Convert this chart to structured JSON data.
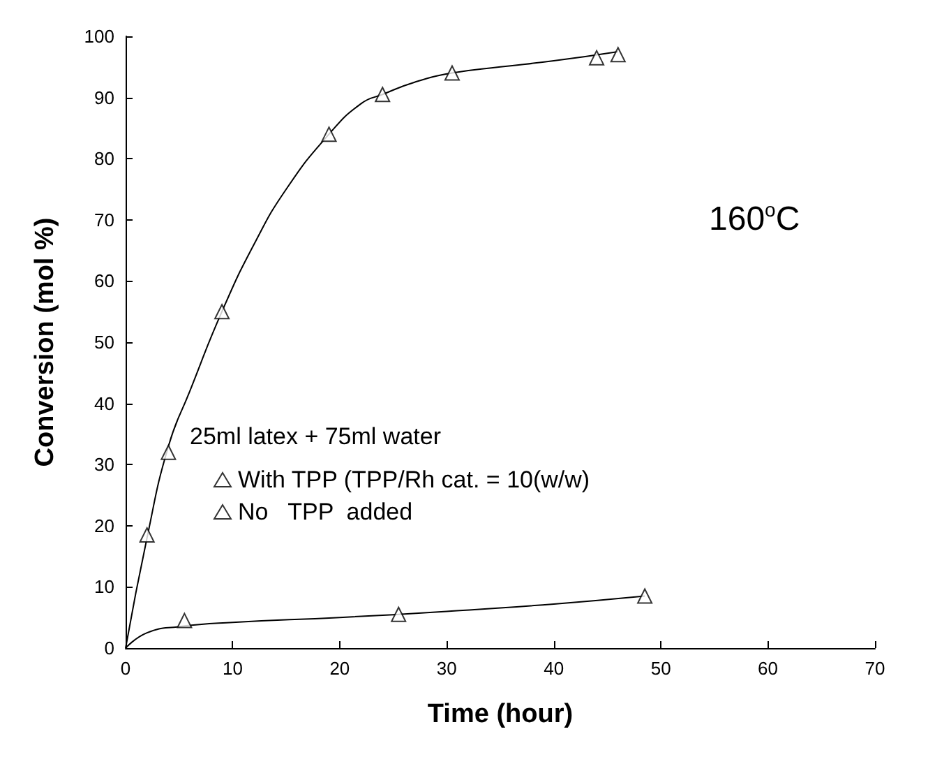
{
  "chart_data": {
    "type": "scatter",
    "xlabel": "Time (hour)",
    "ylabel": "Conversion (mol %)",
    "xlim": [
      0,
      70
    ],
    "xticks": [
      0,
      10,
      20,
      30,
      40,
      50,
      60,
      70
    ],
    "ylim": [
      0,
      100
    ],
    "yticks": [
      0,
      10,
      20,
      30,
      40,
      50,
      60,
      70,
      80,
      90,
      100
    ],
    "grid": false,
    "legend": "bottom",
    "legend_title": "25ml latex + 75ml water",
    "marker": "triangle",
    "annotations": [
      "160$^{o}$C"
    ],
    "series": [
      {
        "name": "With TPP (TPP/Rh cat. = 10(w/w)",
        "color": "#000000",
        "x": [
          2,
          4,
          9,
          19,
          24,
          30.5,
          44,
          46
        ],
        "values": [
          18.5,
          32,
          55,
          84,
          90.5,
          94,
          96.5,
          97
        ]
      },
      {
        "name": "No   TPP  added",
        "color": "#000000",
        "x": [
          5.5,
          25.5,
          48.5
        ],
        "values": [
          4.5,
          5.5,
          8.5
        ]
      },
      {
        "type": "line",
        "marker": "none",
        "color": "#000000",
        "x": [
          0,
          2,
          4,
          6,
          9,
          12,
          15,
          19,
          22,
          24,
          27,
          30.5,
          35,
          40,
          46
        ],
        "values": [
          0,
          18,
          33,
          42,
          55,
          66,
          75,
          84,
          89,
          90.5,
          92.5,
          94,
          95,
          96,
          97.5
        ]
      },
      {
        "type": "line",
        "marker": "none",
        "color": "#000000",
        "x": [
          0,
          2,
          5,
          10,
          20,
          30,
          40,
          48.5
        ],
        "values": [
          0,
          2.5,
          3.5,
          4.2,
          5,
          6,
          7.2,
          8.5
        ]
      }
    ]
  }
}
